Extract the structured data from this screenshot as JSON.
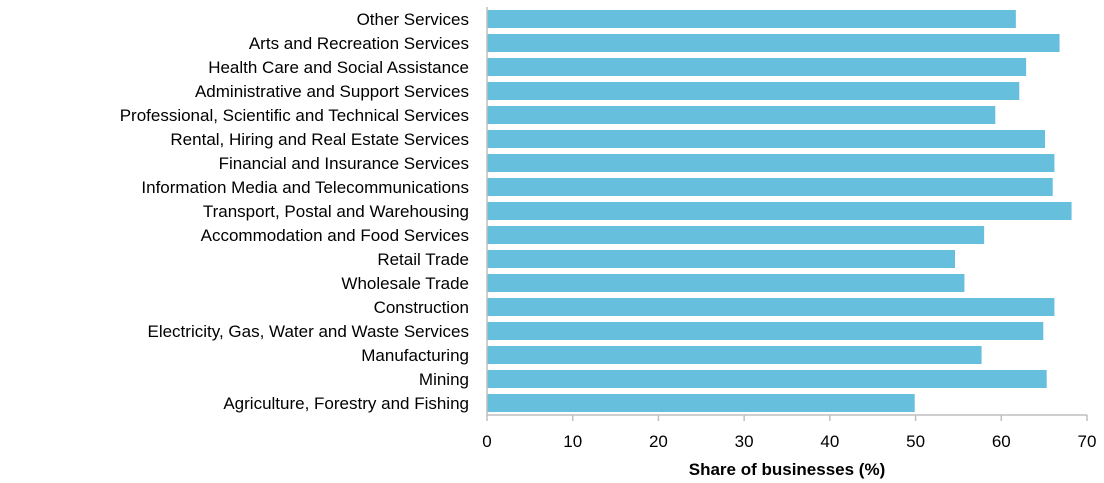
{
  "chart_data": {
    "type": "bar",
    "orientation": "horizontal",
    "categories": [
      "Other Services",
      "Arts and Recreation Services",
      "Health Care and Social Assistance",
      "Administrative and Support Services",
      "Professional, Scientific and Technical Services",
      "Rental, Hiring and Real Estate Services",
      "Financial and Insurance Services",
      "Information Media and Telecommunications",
      "Transport, Postal and Warehousing",
      "Accommodation and Food Services",
      "Retail Trade",
      "Wholesale Trade",
      "Construction",
      "Electricity, Gas, Water and Waste Services",
      "Manufacturing",
      "Mining",
      "Agriculture, Forestry and Fishing"
    ],
    "values": [
      61.7,
      66.8,
      62.9,
      62.1,
      59.3,
      65.1,
      66.2,
      66.0,
      68.2,
      58.0,
      54.6,
      55.7,
      66.2,
      64.9,
      57.7,
      65.3,
      49.9
    ],
    "xlabel": "Share of businesses (%)",
    "ylabel": "",
    "xlim": [
      0,
      70
    ],
    "xticks": [
      0,
      10,
      20,
      30,
      40,
      50,
      60,
      70
    ],
    "grid": false,
    "colors": {
      "bar": "#67bfde",
      "axis": "#bfbfbf"
    }
  }
}
